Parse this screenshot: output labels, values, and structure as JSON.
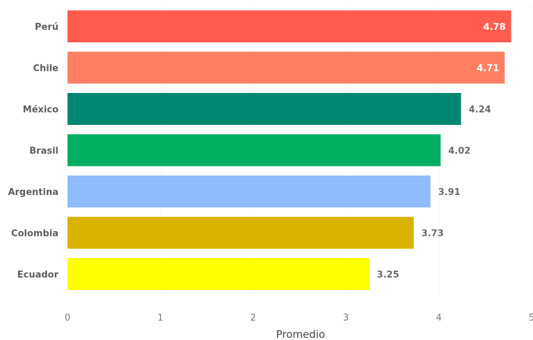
{
  "chart_data": {
    "type": "bar",
    "orientation": "horizontal",
    "categories": [
      "Perú",
      "Chile",
      "México",
      "Brasil",
      "Argentina",
      "Colombia",
      "Ecuador"
    ],
    "values": [
      4.78,
      4.71,
      4.24,
      4.02,
      3.91,
      3.73,
      3.25
    ],
    "value_labels": [
      "4.78",
      "4.71",
      "4.24",
      "4.02",
      "3.91",
      "3.73",
      "3.25"
    ],
    "colors": [
      "#FD5C4F",
      "#FE7F63",
      "#01876F",
      "#03AD62",
      "#8EBCFF",
      "#D9B300",
      "#FFFF00"
    ],
    "xlabel": "Promedio",
    "xlim": [
      0,
      5
    ],
    "xticks": [
      0,
      1,
      2,
      3,
      4,
      5
    ],
    "xtick_labels": [
      "0",
      "1",
      "2",
      "3",
      "4",
      "5"
    ],
    "grid": true,
    "legend": "none"
  }
}
